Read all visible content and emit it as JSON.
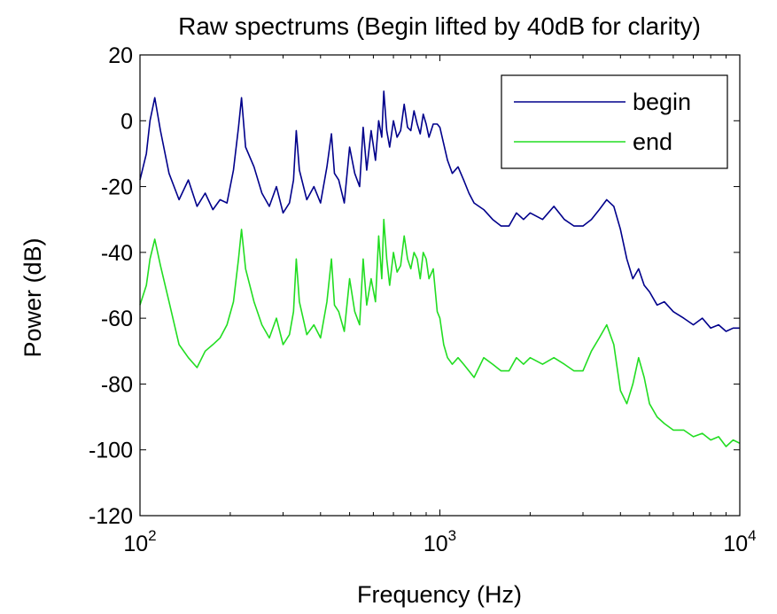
{
  "chart_data": {
    "type": "line",
    "title": "Raw spectrums (Begin lifted by 40dB for clarity)",
    "xlabel": "Frequency (Hz)",
    "ylabel": "Power (dB)",
    "xscale": "log",
    "xlim": [
      100,
      10000
    ],
    "ylim": [
      -120,
      20
    ],
    "grid": false,
    "legend_position": "top-right",
    "x_ticks": [
      {
        "value": 100,
        "base": "10",
        "exp": "2"
      },
      {
        "value": 1000,
        "base": "10",
        "exp": "3"
      },
      {
        "value": 10000,
        "base": "10",
        "exp": "4"
      }
    ],
    "y_ticks": [
      20,
      0,
      -20,
      -40,
      -60,
      -80,
      -100,
      -120
    ],
    "y_tick_labels": [
      "20",
      "0",
      "-20",
      "-40",
      "-60",
      "-80",
      "-100",
      "-120"
    ],
    "series": [
      {
        "name": "begin",
        "color": "#00008b",
        "x": [
          100,
          105,
          108,
          112,
          117,
          125,
          135,
          145,
          155,
          165,
          175,
          185,
          195,
          205,
          213,
          218,
          225,
          240,
          255,
          270,
          285,
          300,
          315,
          325,
          332,
          340,
          360,
          380,
          400,
          420,
          435,
          445,
          460,
          480,
          500,
          520,
          540,
          555,
          570,
          590,
          610,
          625,
          640,
          650,
          665,
          680,
          700,
          720,
          740,
          760,
          780,
          800,
          820,
          840,
          860,
          880,
          900,
          920,
          950,
          980,
          1000,
          1030,
          1060,
          1100,
          1150,
          1200,
          1250,
          1300,
          1400,
          1500,
          1600,
          1700,
          1800,
          1900,
          2000,
          2200,
          2400,
          2600,
          2800,
          3000,
          3200,
          3400,
          3600,
          3800,
          4000,
          4200,
          4400,
          4600,
          4800,
          5000,
          5300,
          5600,
          6000,
          6500,
          7000,
          7500,
          8000,
          8500,
          9000,
          9500,
          10000
        ],
        "y": [
          -18,
          -10,
          0,
          7,
          -3,
          -16,
          -24,
          -18,
          -26,
          -22,
          -27,
          -24,
          -25,
          -15,
          -2,
          7,
          -8,
          -14,
          -22,
          -26,
          -20,
          -28,
          -25,
          -18,
          -3,
          -15,
          -24,
          -20,
          -25,
          -14,
          -4,
          -16,
          -18,
          -25,
          -8,
          -16,
          -20,
          -2,
          -15,
          -3,
          -12,
          0,
          -5,
          9,
          -3,
          -8,
          0,
          -5,
          -3,
          5,
          -2,
          -3,
          3,
          -1,
          -4,
          2,
          -1,
          -5,
          -1,
          -1,
          -2,
          -7,
          -12,
          -16,
          -14,
          -18,
          -22,
          -25,
          -27,
          -30,
          -32,
          -32,
          -28,
          -30,
          -28,
          -30,
          -26,
          -30,
          -32,
          -32,
          -30,
          -27,
          -24,
          -26,
          -33,
          -42,
          -48,
          -45,
          -50,
          -52,
          -56,
          -55,
          -58,
          -60,
          -62,
          -60,
          -63,
          -62,
          -64,
          -63,
          -63
        ]
      },
      {
        "name": "end",
        "color": "#22dd22",
        "x": [
          100,
          105,
          108,
          112,
          117,
          125,
          135,
          145,
          155,
          165,
          175,
          185,
          195,
          205,
          213,
          218,
          225,
          240,
          255,
          270,
          285,
          300,
          315,
          325,
          332,
          340,
          360,
          380,
          400,
          420,
          435,
          445,
          460,
          480,
          500,
          520,
          540,
          555,
          570,
          590,
          610,
          625,
          640,
          650,
          665,
          680,
          700,
          720,
          740,
          760,
          780,
          800,
          820,
          840,
          860,
          880,
          900,
          920,
          950,
          980,
          1000,
          1030,
          1060,
          1100,
          1150,
          1200,
          1250,
          1300,
          1400,
          1500,
          1600,
          1700,
          1800,
          1900,
          2000,
          2200,
          2400,
          2600,
          2800,
          3000,
          3200,
          3400,
          3600,
          3800,
          4000,
          4200,
          4400,
          4600,
          4800,
          5000,
          5300,
          5600,
          6000,
          6500,
          7000,
          7500,
          8000,
          8500,
          9000,
          9500,
          10000
        ],
        "y": [
          -56,
          -50,
          -42,
          -36,
          -44,
          -55,
          -68,
          -72,
          -75,
          -70,
          -68,
          -66,
          -62,
          -55,
          -42,
          -33,
          -45,
          -55,
          -62,
          -66,
          -60,
          -68,
          -65,
          -58,
          -42,
          -55,
          -65,
          -62,
          -66,
          -55,
          -42,
          -56,
          -58,
          -64,
          -48,
          -58,
          -62,
          -42,
          -56,
          -48,
          -55,
          -35,
          -48,
          -30,
          -42,
          -50,
          -40,
          -46,
          -44,
          -35,
          -42,
          -45,
          -40,
          -42,
          -48,
          -40,
          -42,
          -48,
          -45,
          -58,
          -60,
          -68,
          -72,
          -74,
          -72,
          -74,
          -76,
          -78,
          -72,
          -74,
          -76,
          -76,
          -72,
          -74,
          -72,
          -74,
          -72,
          -74,
          -76,
          -76,
          -70,
          -66,
          -62,
          -68,
          -82,
          -86,
          -80,
          -72,
          -78,
          -86,
          -90,
          -92,
          -94,
          -94,
          -96,
          -95,
          -97,
          -96,
          -99,
          -97,
          -98
        ]
      }
    ]
  }
}
